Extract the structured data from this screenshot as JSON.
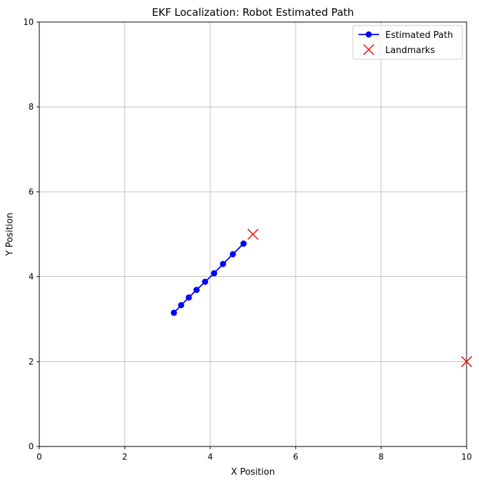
{
  "chart_data": {
    "type": "line",
    "title": "EKF Localization: Robot Estimated Path",
    "xlabel": "X Position",
    "ylabel": "Y Position",
    "xlim": [
      0,
      10
    ],
    "ylim": [
      0,
      10
    ],
    "xticks": [
      "0",
      "2",
      "4",
      "6",
      "8",
      "10"
    ],
    "yticks": [
      "0",
      "2",
      "4",
      "6",
      "8",
      "10"
    ],
    "grid": true,
    "legend_position": "top-right",
    "series": [
      {
        "name": "Estimated Path",
        "kind": "line-marker",
        "color": "#0000ff",
        "x": [
          3.15,
          3.32,
          3.5,
          3.68,
          3.88,
          4.09,
          4.3,
          4.53,
          4.78
        ],
        "y": [
          3.15,
          3.33,
          3.51,
          3.69,
          3.88,
          4.08,
          4.3,
          4.53,
          4.78
        ]
      },
      {
        "name": "Landmarks",
        "kind": "x-marker",
        "color": "#ff0000",
        "x": [
          5,
          10
        ],
        "y": [
          5,
          2
        ]
      }
    ]
  }
}
